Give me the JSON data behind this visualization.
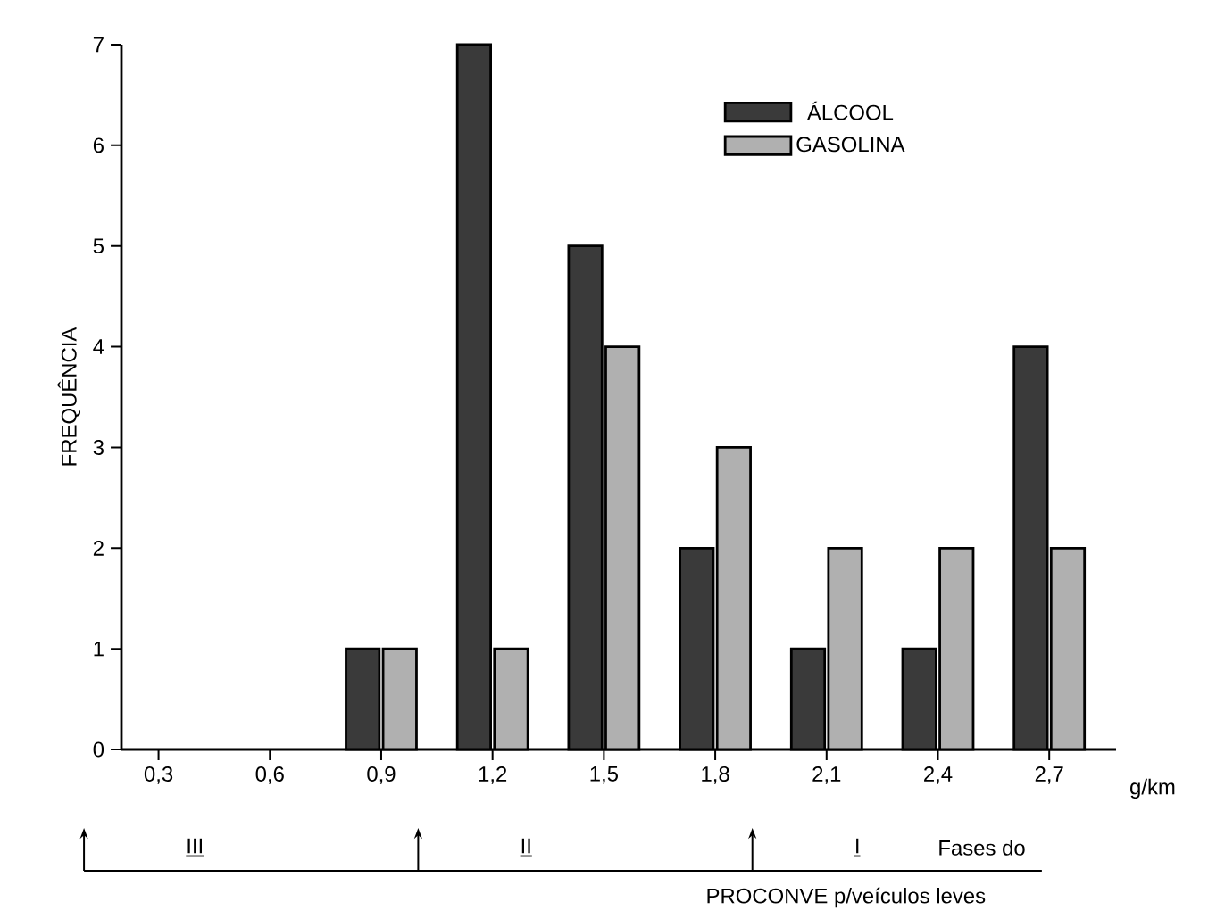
{
  "chart_data": {
    "type": "bar",
    "ylabel": "FREQUÊNCIA",
    "xlabel": "g/km",
    "x": [
      0.9,
      1.2,
      1.5,
      1.8,
      2.1,
      2.4,
      2.7
    ],
    "series": [
      {
        "name": "ÁLCOOL",
        "color": "#3a3a3a",
        "values": [
          1,
          7,
          5,
          2,
          1,
          1,
          4
        ]
      },
      {
        "name": "GASOLINA",
        "color": "#b0b0b0",
        "values": [
          1,
          1,
          4,
          3,
          2,
          2,
          2
        ]
      }
    ],
    "xlim": [
      0.2,
      2.88
    ],
    "ylim": [
      0,
      7
    ],
    "xticks": [
      {
        "value": 0.3,
        "label": "0,3"
      },
      {
        "value": 0.6,
        "label": "0,6"
      },
      {
        "value": 0.9,
        "label": "0,9"
      },
      {
        "value": 1.2,
        "label": "1,2"
      },
      {
        "value": 1.5,
        "label": "1,5"
      },
      {
        "value": 1.8,
        "label": "1,8"
      },
      {
        "value": 2.1,
        "label": "2,1"
      },
      {
        "value": 2.4,
        "label": "2,4"
      },
      {
        "value": 2.7,
        "label": "2,7"
      }
    ],
    "yticks": [
      0,
      1,
      2,
      3,
      4,
      5,
      6,
      7
    ],
    "legend": "top right",
    "grid": false,
    "annotations": [
      "III",
      "II",
      "I",
      "Fases do",
      "PROCONVE p/veículos leves"
    ]
  }
}
